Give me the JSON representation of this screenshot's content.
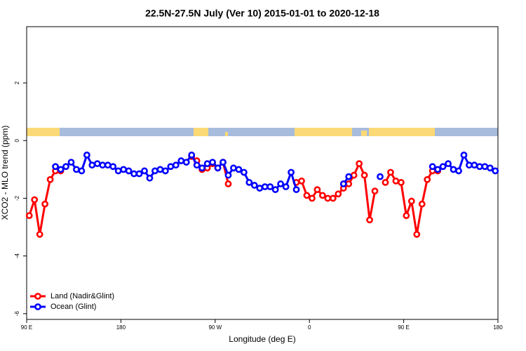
{
  "chart_data": {
    "type": "line",
    "title": "22.5N-27.5N July (Ver 10)   2015-01-01 to 2020-12-18",
    "x_label": "Longitude (deg E)",
    "y_label": "XCO2 - MLO trend (ppm)",
    "x": [
      92.5,
      97.5,
      102.5,
      107.5,
      112.5,
      117.5,
      122.5,
      127.5,
      132.5,
      137.5,
      142.5,
      147.5,
      152.5,
      157.5,
      162.5,
      167.5,
      172.5,
      177.5,
      182.5,
      187.5,
      192.5,
      197.5,
      202.5,
      207.5,
      212.5,
      217.5,
      222.5,
      227.5,
      232.5,
      237.5,
      242.5,
      247.5,
      252.5,
      257.5,
      262.5,
      267.5,
      272.5,
      277.5,
      282.5,
      287.5,
      292.5,
      297.5,
      302.5,
      307.5,
      312.5,
      317.5,
      322.5,
      327.5,
      332.5,
      337.5,
      342.5,
      347.5,
      352.5,
      357.5,
      362.5,
      367.5,
      372.5,
      377.5,
      382.5,
      387.5,
      392.5,
      397.5,
      402.5,
      407.5,
      412.5,
      417.5,
      422.5,
      427.5,
      432.5,
      437.5,
      442.5,
      447.5,
      452.5,
      457.5,
      462.5,
      467.5,
      472.5,
      477.5,
      482.5,
      487.5,
      492.5,
      497.5,
      502.5,
      507.5,
      512.5,
      517.5,
      522.5,
      527.5,
      532.5,
      537.5
    ],
    "series": [
      {
        "name": "Land (Nadir&Glint)",
        "color": "#ff0000",
        "values": [
          -2.6,
          -2.05,
          -3.25,
          -2.2,
          -1.35,
          -1.05,
          -1.05,
          null,
          null,
          null,
          null,
          null,
          null,
          null,
          null,
          null,
          null,
          null,
          null,
          null,
          null,
          null,
          null,
          null,
          null,
          null,
          null,
          null,
          null,
          null,
          null,
          -0.55,
          -0.7,
          -1.0,
          -0.95,
          -0.8,
          -0.95,
          -0.75,
          -1.5,
          null,
          null,
          null,
          null,
          null,
          null,
          null,
          null,
          null,
          null,
          null,
          null,
          -1.45,
          -1.4,
          -1.9,
          -2.0,
          -1.7,
          -1.9,
          -2.0,
          -2.0,
          -1.85,
          -1.65,
          -1.5,
          -1.2,
          -0.8,
          -1.2,
          -2.75,
          -1.75,
          null,
          -1.45,
          -1.1,
          -1.4,
          -1.45,
          -2.6,
          -2.1,
          -3.25,
          -2.2,
          -1.35,
          -1.05,
          -1.05,
          null,
          null,
          null,
          null,
          null,
          null,
          null,
          null,
          null,
          null,
          null
        ]
      },
      {
        "name": "Ocean (Glint)",
        "color": "#0000ff",
        "values": [
          null,
          null,
          null,
          null,
          null,
          -0.9,
          -1.0,
          -0.9,
          -0.75,
          -1.0,
          -1.05,
          -0.5,
          -0.85,
          -0.8,
          -0.85,
          -0.85,
          -0.9,
          -1.05,
          -1.0,
          -1.05,
          -1.15,
          -1.15,
          -1.05,
          -1.3,
          -1.05,
          -1.0,
          -1.05,
          -0.9,
          -0.85,
          -0.7,
          -0.75,
          -0.5,
          -0.85,
          -0.95,
          -0.8,
          -0.75,
          -0.95,
          -0.75,
          -1.2,
          -0.95,
          -1.0,
          -1.1,
          -1.45,
          -1.55,
          -1.65,
          -1.6,
          -1.6,
          -1.7,
          -1.5,
          -1.6,
          -1.1,
          -1.7,
          null,
          null,
          null,
          null,
          null,
          null,
          null,
          null,
          -1.5,
          -1.25,
          null,
          null,
          null,
          null,
          null,
          -1.25,
          null,
          null,
          null,
          null,
          null,
          null,
          null,
          null,
          null,
          -0.9,
          -1.0,
          -0.9,
          -0.8,
          -1.0,
          -1.05,
          -0.5,
          -0.85,
          -0.85,
          -0.9,
          -0.9,
          -0.95,
          -1.05
        ]
      }
    ],
    "xlim": [
      90,
      540
    ],
    "xticks": [
      {
        "value": 90,
        "label": "90 E"
      },
      180,
      {
        "value": 270,
        "label": "90 W"
      },
      {
        "value": 360,
        "label": "0"
      },
      {
        "value": 450,
        "label": "90 E"
      },
      {
        "value": 540,
        "label": "180"
      }
    ],
    "ylim": [
      -6.2,
      3.95
    ],
    "yticks": [
      2,
      0,
      -2,
      -4,
      -6
    ],
    "legend": "bottom-left"
  }
}
